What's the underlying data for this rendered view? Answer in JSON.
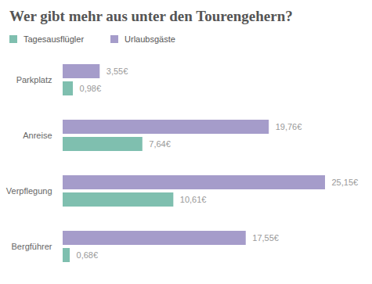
{
  "chart_data": {
    "type": "bar",
    "title": "Wer gibt mehr aus unter den Tourengehern?",
    "orientation": "horizontal",
    "data_labels": true,
    "tick_labels": "y",
    "legend": "top-left",
    "categories": [
      "Parkplatz",
      "Anreise",
      "Verpflegung",
      "Bergführer"
    ],
    "series": [
      {
        "name": "Tagesausflügler",
        "color": "#7fbfaf",
        "values": [
          0.98,
          7.64,
          10.61,
          0.68
        ],
        "value_labels": [
          "0,98€",
          "7,64€",
          "10,61€",
          "0,68€"
        ]
      },
      {
        "name": "Urlaubsgäste",
        "color": "#a59cca",
        "values": [
          3.55,
          19.76,
          25.15,
          17.55
        ],
        "value_labels": [
          "3,55€",
          "19,76€",
          "25,15€",
          "17,55€"
        ]
      }
    ]
  }
}
